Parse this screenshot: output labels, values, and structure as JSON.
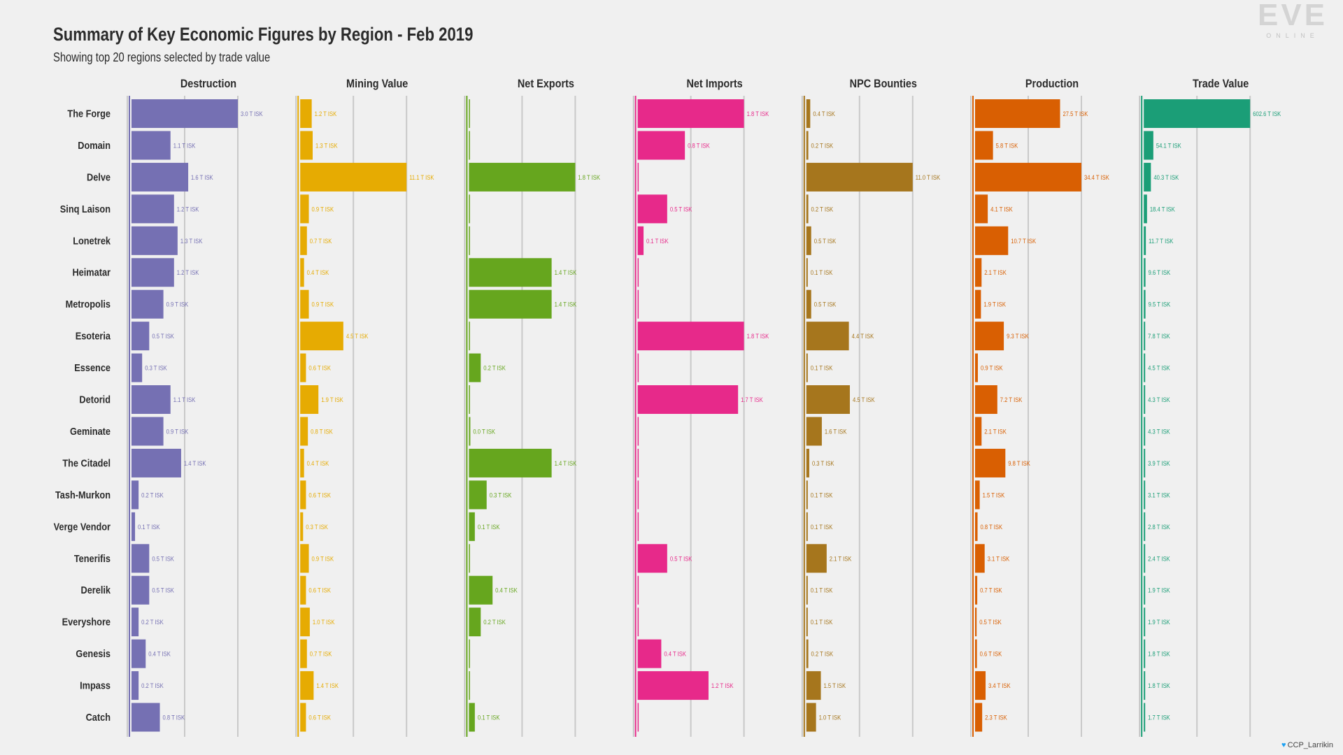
{
  "chart_data": {
    "type": "bar",
    "title": "Summary of Key Economic Figures by Region - Feb 2019",
    "subtitle": "Showing top 20 regions selected by trade value",
    "categories": [
      "The Forge",
      "Domain",
      "Delve",
      "Sinq Laison",
      "Lonetrek",
      "Heimatar",
      "Metropolis",
      "Esoteria",
      "Essence",
      "Detorid",
      "Geminate",
      "The Citadel",
      "Tash-Murkon",
      "Verge Vendor",
      "Tenerifis",
      "Derelik",
      "Everyshore",
      "Genesis",
      "Impass",
      "Catch"
    ],
    "series": [
      {
        "name": "Destruction",
        "color": "#7570b3",
        "max": 3.0,
        "values": [
          3.0,
          1.1,
          1.6,
          1.2,
          1.3,
          1.2,
          0.9,
          0.5,
          0.3,
          1.1,
          0.9,
          1.4,
          0.2,
          0.1,
          0.5,
          0.5,
          0.2,
          0.4,
          0.2,
          0.8
        ],
        "labels": [
          "3.0 T ISK",
          "1.1 T ISK",
          "1.6 T ISK",
          "1.2 T ISK",
          "1.3 T ISK",
          "1.2 T ISK",
          "0.9 T ISK",
          "0.5 T ISK",
          "0.3 T ISK",
          "1.1 T ISK",
          "0.9 T ISK",
          "1.4 T ISK",
          "0.2 T ISK",
          "0.1 T ISK",
          "0.5 T ISK",
          "0.5 T ISK",
          "0.2 T ISK",
          "0.4 T ISK",
          "0.2 T ISK",
          "0.8 T ISK"
        ]
      },
      {
        "name": "Mining Value",
        "color": "#e6ab02",
        "max": 11.1,
        "values": [
          1.2,
          1.3,
          11.1,
          0.9,
          0.7,
          0.4,
          0.9,
          4.5,
          0.6,
          1.9,
          0.8,
          0.4,
          0.6,
          0.3,
          0.9,
          0.6,
          1.0,
          0.7,
          1.4,
          0.6
        ],
        "labels": [
          "1.2 T ISK",
          "1.3 T ISK",
          "11.1 T ISK",
          "0.9 T ISK",
          "0.7 T ISK",
          "0.4 T ISK",
          "0.9 T ISK",
          "4.5 T ISK",
          "0.6 T ISK",
          "1.9 T ISK",
          "0.8 T ISK",
          "0.4 T ISK",
          "0.6 T ISK",
          "0.3 T ISK",
          "0.9 T ISK",
          "0.6 T ISK",
          "1.0 T ISK",
          "0.7 T ISK",
          "1.4 T ISK",
          "0.6 T ISK"
        ]
      },
      {
        "name": "Net Exports",
        "color": "#66a61e",
        "max": 1.8,
        "values": [
          0,
          0,
          1.8,
          0,
          0,
          1.4,
          1.4,
          0,
          0.2,
          0,
          0.02,
          1.4,
          0.3,
          0.1,
          0,
          0.4,
          0.2,
          0,
          0,
          0.1
        ],
        "labels": [
          "",
          "",
          "1.8 T ISK",
          "",
          "",
          "1.4 T ISK",
          "1.4 T ISK",
          "",
          "0.2 T ISK",
          "",
          "0.0 T ISK",
          "1.4 T ISK",
          "0.3 T ISK",
          "0.1 T ISK",
          "",
          "0.4 T ISK",
          "0.2 T ISK",
          "",
          "",
          "0.1 T ISK"
        ]
      },
      {
        "name": "Net Imports",
        "color": "#e7298a",
        "max": 1.8,
        "values": [
          1.8,
          0.8,
          0,
          0.5,
          0.1,
          0,
          0,
          1.8,
          0,
          1.7,
          0,
          0,
          0,
          0,
          0.5,
          0,
          0,
          0.4,
          1.2,
          0
        ],
        "labels": [
          "1.8 T ISK",
          "0.8 T ISK",
          "",
          "0.5 T ISK",
          "0.1 T ISK",
          "",
          "",
          "1.8 T ISK",
          "",
          "1.7 T ISK",
          "",
          "",
          "",
          "",
          "0.5 T ISK",
          "",
          "",
          "0.4 T ISK",
          "1.2 T ISK",
          ""
        ]
      },
      {
        "name": "NPC Bounties",
        "color": "#a6761d",
        "max": 11.0,
        "values": [
          0.4,
          0.2,
          11.0,
          0.2,
          0.5,
          0.1,
          0.5,
          4.4,
          0.1,
          4.5,
          1.6,
          0.3,
          0.1,
          0.1,
          2.1,
          0.1,
          0.1,
          0.2,
          1.5,
          1.0
        ],
        "labels": [
          "0.4 T ISK",
          "0.2 T ISK",
          "11.0 T ISK",
          "0.2 T ISK",
          "0.5 T ISK",
          "0.1 T ISK",
          "0.5 T ISK",
          "4.4 T ISK",
          "0.1 T ISK",
          "4.5 T ISK",
          "1.6 T ISK",
          "0.3 T ISK",
          "0.1 T ISK",
          "0.1 T ISK",
          "2.1 T ISK",
          "0.1 T ISK",
          "0.1 T ISK",
          "0.2 T ISK",
          "1.5 T ISK",
          "1.0 T ISK"
        ]
      },
      {
        "name": "Production",
        "color": "#d95f02",
        "max": 34.4,
        "values": [
          27.5,
          5.8,
          34.4,
          4.1,
          10.7,
          2.1,
          1.9,
          9.3,
          0.9,
          7.2,
          2.1,
          9.8,
          1.5,
          0.8,
          3.1,
          0.7,
          0.5,
          0.6,
          3.4,
          2.3
        ],
        "labels": [
          "27.5 T ISK",
          "5.8 T ISK",
          "34.4 T ISK",
          "4.1 T ISK",
          "10.7 T ISK",
          "2.1 T ISK",
          "1.9 T ISK",
          "9.3 T ISK",
          "0.9 T ISK",
          "7.2 T ISK",
          "2.1 T ISK",
          "9.8 T ISK",
          "1.5 T ISK",
          "0.8 T ISK",
          "3.1 T ISK",
          "0.7 T ISK",
          "0.5 T ISK",
          "0.6 T ISK",
          "3.4 T ISK",
          "2.3 T ISK"
        ]
      },
      {
        "name": "Trade Value",
        "color": "#1b9e77",
        "max": 602.6,
        "values": [
          602.6,
          54.1,
          40.3,
          18.4,
          11.7,
          9.6,
          9.5,
          7.8,
          4.5,
          4.3,
          4.3,
          3.9,
          3.1,
          2.8,
          2.4,
          1.9,
          1.9,
          1.8,
          1.8,
          1.7
        ],
        "labels": [
          "602.6 T ISK",
          "54.1 T ISK",
          "40.3 T ISK",
          "18.4 T ISK",
          "11.7 T ISK",
          "9.6 T ISK",
          "9.5 T ISK",
          "7.8 T ISK",
          "4.5 T ISK",
          "4.3 T ISK",
          "4.3 T ISK",
          "3.9 T ISK",
          "3.1 T ISK",
          "2.8 T ISK",
          "2.4 T ISK",
          "1.9 T ISK",
          "1.9 T ISK",
          "1.8 T ISK",
          "1.8 T ISK",
          "1.7 T ISK"
        ]
      }
    ],
    "grid": true
  },
  "logo": {
    "mark": "EVE",
    "sub": "ONLINE"
  },
  "credit": "CCP_Larrikin"
}
